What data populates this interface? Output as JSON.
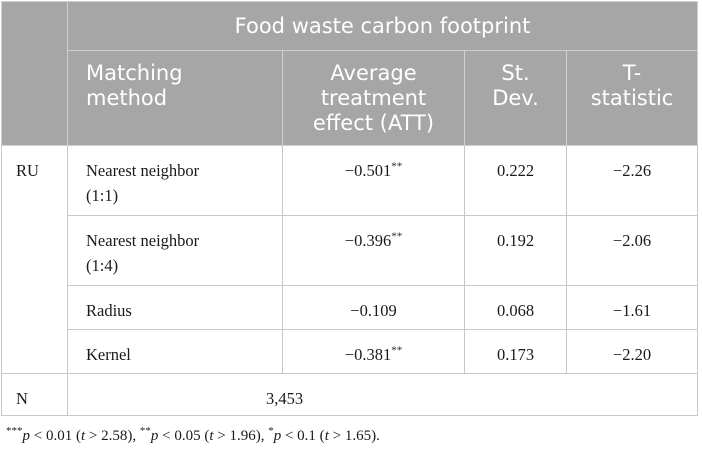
{
  "table": {
    "header_group": "Food waste carbon footprint",
    "columns": [
      {
        "label_line1": "Matching",
        "label_line2": "method"
      },
      {
        "label_line1": "Average",
        "label_line2": "treatment",
        "label_line3": "effect (ATT)"
      },
      {
        "label_line1": "St.",
        "label_line2": "Dev."
      },
      {
        "label_line1": "T-",
        "label_line2": "statistic"
      }
    ],
    "group_label": "RU",
    "rows": [
      {
        "method_line1": "Nearest neighbor",
        "method_line2": "(1:1)",
        "att": "−0.501",
        "att_sig": "**",
        "sd": "0.222",
        "t": "−2.26"
      },
      {
        "method_line1": "Nearest neighbor",
        "method_line2": "(1:4)",
        "att": "−0.396",
        "att_sig": "**",
        "sd": "0.192",
        "t": "−2.06"
      },
      {
        "method_line1": "Radius",
        "method_line2": "",
        "att": "−0.109",
        "att_sig": "",
        "sd": "0.068",
        "t": "−1.61"
      },
      {
        "method_line1": "Kernel",
        "method_line2": "",
        "att": "−0.381",
        "att_sig": "**",
        "sd": "0.173",
        "t": "−2.20"
      }
    ],
    "n_label": "N",
    "n_value": "3,453"
  },
  "footnote": {
    "s1_sig": "***",
    "s1_p": "p",
    "s1_cond": " < 0.01 (",
    "s1_t": "t",
    "s1_end": " > 2.58), ",
    "s2_sig": "**",
    "s2_p": "p",
    "s2_cond": " < 0.05 (",
    "s2_t": "t",
    "s2_end": " > 1.96), ",
    "s3_sig": "*",
    "s3_p": "p",
    "s3_cond": " < 0.1 (",
    "s3_t": "t",
    "s3_end": " > 1.65)."
  }
}
